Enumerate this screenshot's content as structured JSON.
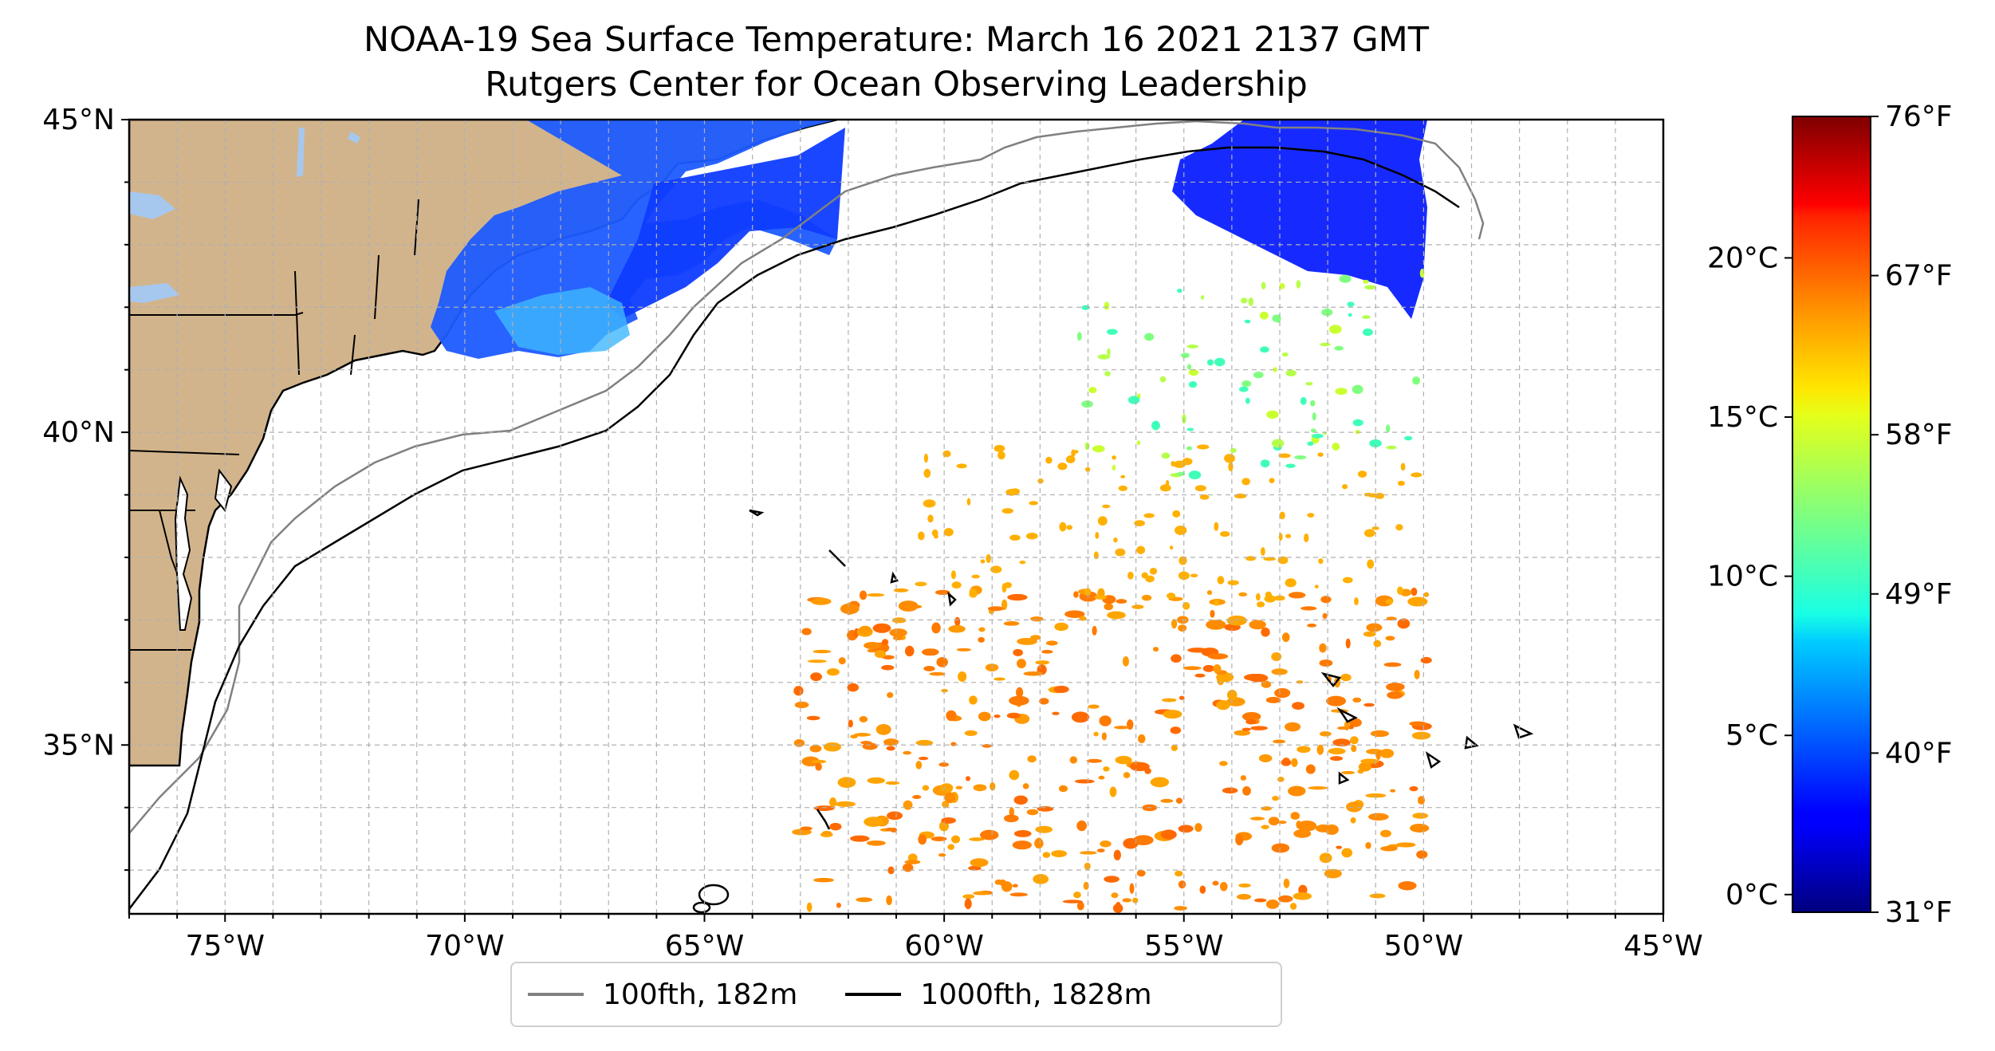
{
  "title_line1": "NOAA-19 Sea Surface Temperature: March 16 2021 2137 GMT",
  "title_line2": "Rutgers Center for Ocean Observing Leadership",
  "map": {
    "extent_lon": [
      -77,
      -45
    ],
    "extent_lat": [
      32.3,
      45
    ],
    "lon_ticks": [
      {
        "value": -75,
        "label": "75°W"
      },
      {
        "value": -70,
        "label": "70°W"
      },
      {
        "value": -65,
        "label": "65°W"
      },
      {
        "value": -60,
        "label": "60°W"
      },
      {
        "value": -55,
        "label": "55°W"
      },
      {
        "value": -50,
        "label": "50°W"
      },
      {
        "value": -45,
        "label": "45°W"
      }
    ],
    "lat_ticks": [
      {
        "value": 45,
        "label": "45°N"
      },
      {
        "value": 40,
        "label": "40°N"
      },
      {
        "value": 35,
        "label": "35°N"
      }
    ],
    "gridlines": "dashed",
    "colors": {
      "land": "#d2b48c",
      "lakes": "#a6c8ee",
      "isobath_100": "#808080",
      "isobath_1000": "#000000"
    }
  },
  "colorbar": {
    "colormap": "jet",
    "range_f": [
      31,
      76
    ],
    "celsius_ticks": [
      {
        "value": 0,
        "label": "0°C"
      },
      {
        "value": 5,
        "label": "5°C"
      },
      {
        "value": 10,
        "label": "10°C"
      },
      {
        "value": 15,
        "label": "15°C"
      },
      {
        "value": 20,
        "label": "20°C"
      }
    ],
    "fahrenheit_ticks": [
      {
        "value": 31,
        "label": "31°F"
      },
      {
        "value": 40,
        "label": "40°F"
      },
      {
        "value": 49,
        "label": "49°F"
      },
      {
        "value": 58,
        "label": "58°F"
      },
      {
        "value": 67,
        "label": "67°F"
      },
      {
        "value": 76,
        "label": "76°F"
      }
    ]
  },
  "legend": {
    "items": [
      {
        "label": "100fth, 182m",
        "color": "#808080"
      },
      {
        "label": "1000fth, 1828m",
        "color": "#000000"
      }
    ]
  }
}
